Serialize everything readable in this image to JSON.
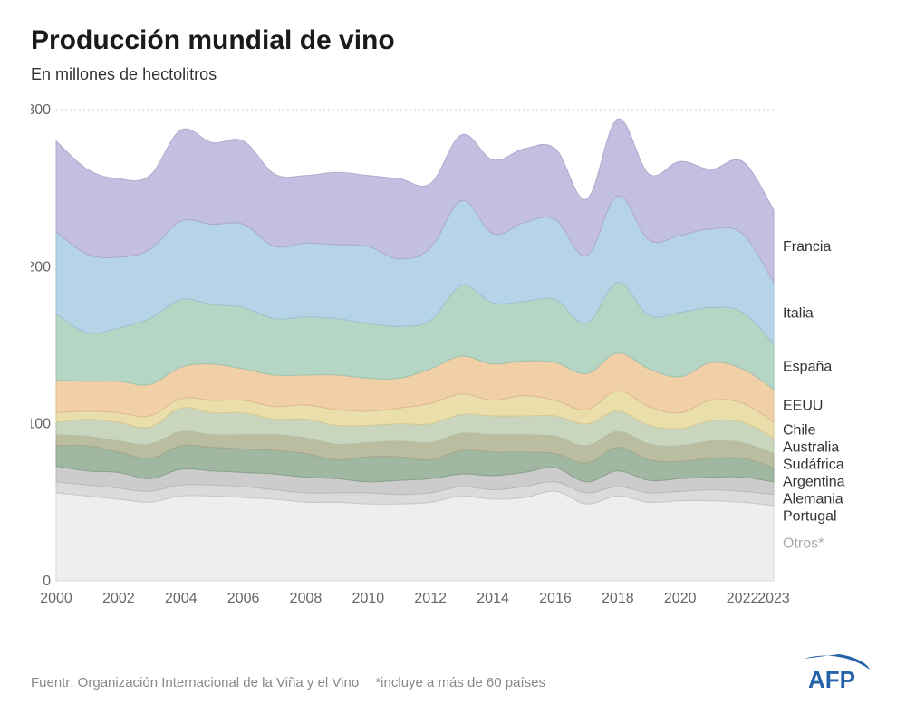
{
  "title": "Producción mundial de vino",
  "subtitle": "En millones de hectolitros",
  "footer_source": "Fuentr: Organización Internacional de la Viña y el Vino",
  "footer_note": "*incluye a más de 60 países",
  "logo_text": "AFP",
  "chart": {
    "type": "stacked-area",
    "background_color": "#ffffff",
    "grid_color": "#cccccc",
    "axis_text_color": "#666666",
    "label_text_color": "#333333",
    "otros_label_color": "#aaaaaa",
    "title_fontsize": 30,
    "subtitle_fontsize": 18,
    "tick_fontsize": 16,
    "label_fontsize": 16,
    "years": [
      2000,
      2001,
      2002,
      2003,
      2004,
      2005,
      2006,
      2007,
      2008,
      2009,
      2010,
      2011,
      2012,
      2013,
      2014,
      2015,
      2016,
      2017,
      2018,
      2019,
      2020,
      2021,
      2022,
      2023
    ],
    "xlim": [
      2000,
      2023
    ],
    "xtick_step": 2,
    "xtick_extra": 2023,
    "ylim": [
      0,
      300
    ],
    "yticks": [
      0,
      100,
      200,
      300
    ],
    "series": [
      {
        "name": "Otros",
        "label": "Otros*",
        "color": "#ededed",
        "stroke": "#d9d9d9",
        "data": [
          56,
          54,
          52,
          50,
          54,
          54,
          53,
          52,
          50,
          50,
          49,
          49,
          50,
          54,
          52,
          53,
          57,
          49,
          54,
          50,
          51,
          51,
          50,
          48
        ]
      },
      {
        "name": "Portugal",
        "label": "Portugal",
        "color": "#d9d9d9",
        "stroke": "#c7c7c7",
        "data": [
          7,
          7,
          7,
          7,
          7,
          7,
          7,
          6,
          6,
          6,
          7,
          6,
          6,
          6,
          6,
          7,
          6,
          7,
          6,
          6,
          6,
          7,
          7,
          7
        ]
      },
      {
        "name": "Alemania",
        "label": "Alemania",
        "color": "#c9c9c9",
        "stroke": "#b9b9b9",
        "data": [
          10,
          9,
          10,
          8,
          10,
          9,
          9,
          10,
          10,
          9,
          7,
          9,
          9,
          8,
          9,
          9,
          9,
          7,
          10,
          8,
          8,
          8,
          9,
          8
        ]
      },
      {
        "name": "Argentina",
        "label": "Argentina",
        "color": "#9bb39d",
        "stroke": "#8aa28c",
        "data": [
          13,
          16,
          13,
          13,
          15,
          15,
          15,
          15,
          15,
          12,
          16,
          15,
          12,
          15,
          15,
          13,
          9,
          12,
          15,
          13,
          11,
          12,
          12,
          9
        ]
      },
      {
        "name": "Sudáfrica",
        "label": "Sudáfrica",
        "color": "#b7b99c",
        "stroke": "#a7a98c",
        "data": [
          7,
          6,
          7,
          9,
          9,
          8,
          9,
          10,
          10,
          10,
          9,
          10,
          11,
          11,
          11,
          11,
          11,
          11,
          10,
          10,
          10,
          11,
          10,
          9
        ]
      },
      {
        "name": "Australia",
        "label": "Australia",
        "color": "#c6d3b9",
        "stroke": "#b4c1a7",
        "data": [
          8,
          11,
          12,
          11,
          15,
          14,
          14,
          10,
          12,
          12,
          11,
          11,
          12,
          12,
          12,
          12,
          13,
          14,
          13,
          12,
          11,
          13,
          13,
          10
        ]
      },
      {
        "name": "Chile",
        "label": "Chile",
        "color": "#e9dca6",
        "stroke": "#d7ca94",
        "data": [
          6,
          5,
          6,
          7,
          6,
          8,
          8,
          8,
          9,
          10,
          9,
          10,
          13,
          13,
          10,
          13,
          10,
          9,
          13,
          12,
          10,
          13,
          12,
          10
        ]
      },
      {
        "name": "EEUU",
        "label": "EEUU",
        "color": "#f0cda3",
        "stroke": "#debb91",
        "data": [
          21,
          19,
          20,
          20,
          20,
          23,
          20,
          20,
          19,
          22,
          21,
          19,
          22,
          24,
          23,
          22,
          24,
          23,
          24,
          24,
          23,
          24,
          22,
          21
        ]
      },
      {
        "name": "Espana",
        "label": "España",
        "color": "#b1d4c1",
        "stroke": "#9fc2af",
        "data": [
          42,
          31,
          34,
          42,
          43,
          38,
          39,
          36,
          37,
          36,
          35,
          33,
          31,
          45,
          39,
          38,
          40,
          32,
          45,
          34,
          41,
          35,
          36,
          29
        ]
      },
      {
        "name": "Italia",
        "label": "Italia",
        "color": "#b1d2e7",
        "stroke": "#9fc0d5",
        "data": [
          52,
          50,
          45,
          44,
          50,
          51,
          53,
          46,
          47,
          47,
          49,
          43,
          46,
          54,
          44,
          50,
          51,
          43,
          55,
          48,
          49,
          50,
          50,
          39
        ]
      },
      {
        "name": "Francia",
        "label": "Francia",
        "color": "#c0bcdf",
        "stroke": "#aeaacd",
        "data": [
          58,
          54,
          50,
          47,
          58,
          52,
          53,
          46,
          43,
          46,
          45,
          51,
          41,
          42,
          47,
          47,
          45,
          36,
          49,
          42,
          47,
          38,
          46,
          46
        ]
      }
    ]
  }
}
